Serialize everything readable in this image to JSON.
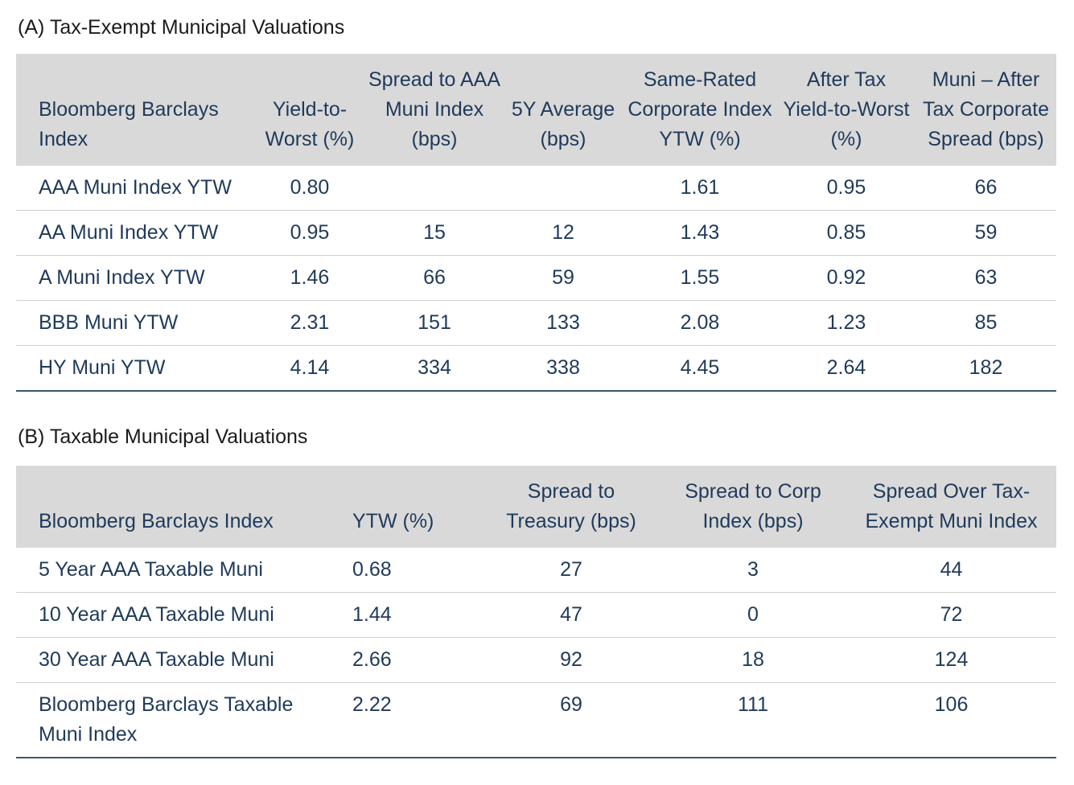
{
  "section_a": {
    "title": "(A) Tax-Exempt Municipal Valuations",
    "headers": [
      "Bloomberg Barclays Index",
      "Yield-to-Worst (%)",
      "Spread to AAA Muni Index (bps)",
      "5Y Average (bps)",
      "Same-Rated Corporate Index YTW (%)",
      "After Tax Yield-to-Worst (%)",
      "Muni – After Tax Corporate Spread (bps)"
    ],
    "rows": [
      [
        "AAA Muni Index YTW",
        "0.80",
        "",
        "",
        "1.61",
        "0.95",
        "66"
      ],
      [
        "AA Muni Index YTW",
        "0.95",
        "15",
        "12",
        "1.43",
        "0.85",
        "59"
      ],
      [
        "A Muni Index YTW",
        "1.46",
        "66",
        "59",
        "1.55",
        "0.92",
        "63"
      ],
      [
        "BBB Muni YTW",
        "2.31",
        "151",
        "133",
        "2.08",
        "1.23",
        "85"
      ],
      [
        "HY Muni YTW",
        "4.14",
        "334",
        "338",
        "4.45",
        "2.64",
        "182"
      ]
    ]
  },
  "section_b": {
    "title": "(B) Taxable Municipal Valuations",
    "headers": [
      "Bloomberg Barclays Index",
      "YTW (%)",
      "Spread to Treasury (bps)",
      "Spread to Corp Index (bps)",
      "Spread Over Tax-Exempt Muni Index"
    ],
    "rows": [
      [
        "5 Year AAA Taxable Muni",
        "0.68",
        "27",
        "3",
        "44"
      ],
      [
        "10 Year AAA Taxable Muni",
        "1.44",
        "47",
        "0",
        "72"
      ],
      [
        "30 Year AAA Taxable Muni",
        "2.66",
        "92",
        "18",
        "124"
      ],
      [
        "Bloomberg Barclays Taxable Muni Index",
        "2.22",
        "69",
        "111",
        "106"
      ]
    ]
  }
}
